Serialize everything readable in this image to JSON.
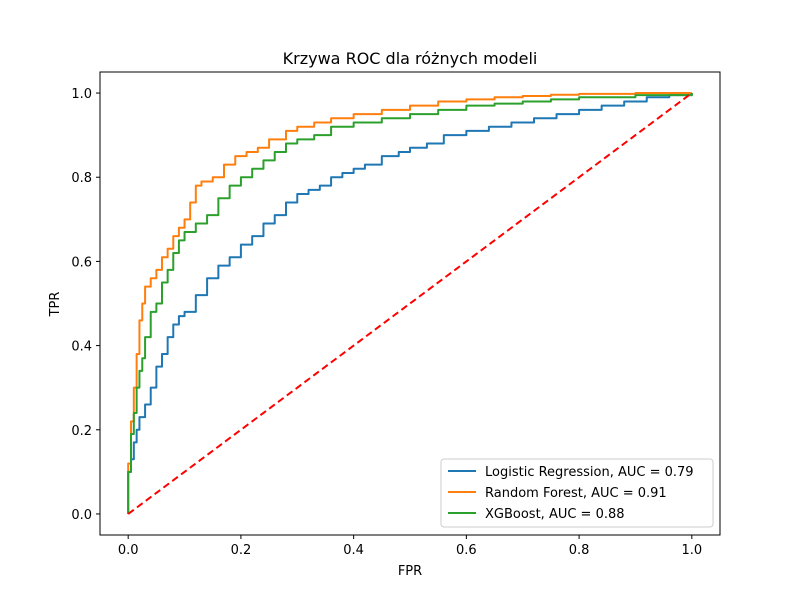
{
  "chart_data": {
    "type": "line",
    "title": "Krzywa ROC dla różnych modeli",
    "xlabel": "FPR",
    "ylabel": "TPR",
    "xlim": [
      -0.05,
      1.05
    ],
    "ylim": [
      -0.05,
      1.05
    ],
    "xticks": [
      "0.0",
      "0.2",
      "0.4",
      "0.6",
      "0.8",
      "1.0"
    ],
    "yticks": [
      "0.0",
      "0.2",
      "0.4",
      "0.6",
      "0.8",
      "1.0"
    ],
    "grid": false,
    "legend_position": "lower-right",
    "series": [
      {
        "name": "Logistic Regression, AUC = 0.79",
        "color": "#1f77b4",
        "style": "step",
        "x": [
          0.0,
          0.0,
          0.005,
          0.01,
          0.015,
          0.02,
          0.03,
          0.04,
          0.05,
          0.06,
          0.07,
          0.08,
          0.09,
          0.1,
          0.12,
          0.14,
          0.16,
          0.18,
          0.2,
          0.22,
          0.24,
          0.26,
          0.28,
          0.3,
          0.32,
          0.34,
          0.36,
          0.38,
          0.4,
          0.42,
          0.45,
          0.48,
          0.5,
          0.53,
          0.56,
          0.6,
          0.64,
          0.68,
          0.72,
          0.76,
          0.8,
          0.84,
          0.88,
          0.92,
          0.96,
          1.0
        ],
        "y": [
          0.0,
          0.1,
          0.13,
          0.17,
          0.2,
          0.23,
          0.26,
          0.3,
          0.35,
          0.38,
          0.42,
          0.45,
          0.47,
          0.48,
          0.52,
          0.56,
          0.59,
          0.61,
          0.64,
          0.66,
          0.69,
          0.71,
          0.74,
          0.76,
          0.77,
          0.78,
          0.8,
          0.81,
          0.82,
          0.83,
          0.85,
          0.86,
          0.87,
          0.88,
          0.9,
          0.91,
          0.92,
          0.93,
          0.94,
          0.95,
          0.96,
          0.97,
          0.98,
          0.99,
          0.995,
          1.0
        ]
      },
      {
        "name": "Random Forest, AUC = 0.91",
        "color": "#ff7f0e",
        "style": "step",
        "x": [
          0.0,
          0.0,
          0.005,
          0.01,
          0.015,
          0.02,
          0.025,
          0.03,
          0.04,
          0.05,
          0.06,
          0.07,
          0.08,
          0.09,
          0.1,
          0.11,
          0.12,
          0.13,
          0.15,
          0.17,
          0.19,
          0.21,
          0.23,
          0.25,
          0.28,
          0.3,
          0.33,
          0.36,
          0.4,
          0.45,
          0.5,
          0.55,
          0.6,
          0.65,
          0.7,
          0.75,
          0.8,
          0.9,
          1.0
        ],
        "y": [
          0.0,
          0.12,
          0.22,
          0.3,
          0.38,
          0.46,
          0.5,
          0.54,
          0.56,
          0.58,
          0.61,
          0.63,
          0.66,
          0.68,
          0.7,
          0.74,
          0.78,
          0.79,
          0.8,
          0.83,
          0.85,
          0.86,
          0.87,
          0.89,
          0.91,
          0.92,
          0.93,
          0.94,
          0.95,
          0.96,
          0.97,
          0.98,
          0.985,
          0.99,
          0.993,
          0.996,
          0.998,
          1.0,
          1.0
        ]
      },
      {
        "name": "XGBoost, AUC = 0.88",
        "color": "#2ca02c",
        "style": "step",
        "x": [
          0.0,
          0.0,
          0.005,
          0.01,
          0.015,
          0.02,
          0.025,
          0.03,
          0.04,
          0.05,
          0.06,
          0.07,
          0.08,
          0.09,
          0.1,
          0.12,
          0.14,
          0.16,
          0.18,
          0.2,
          0.22,
          0.24,
          0.26,
          0.28,
          0.3,
          0.33,
          0.36,
          0.4,
          0.45,
          0.5,
          0.55,
          0.6,
          0.65,
          0.7,
          0.75,
          0.8,
          0.9,
          1.0
        ],
        "y": [
          0.0,
          0.1,
          0.19,
          0.24,
          0.3,
          0.34,
          0.37,
          0.42,
          0.48,
          0.5,
          0.55,
          0.58,
          0.62,
          0.65,
          0.67,
          0.69,
          0.71,
          0.75,
          0.78,
          0.8,
          0.82,
          0.84,
          0.86,
          0.88,
          0.89,
          0.9,
          0.92,
          0.93,
          0.94,
          0.95,
          0.96,
          0.97,
          0.975,
          0.98,
          0.985,
          0.99,
          0.995,
          1.0
        ]
      },
      {
        "name": "",
        "color": "#ff0000",
        "style": "dashed",
        "x": [
          0.0,
          1.0
        ],
        "y": [
          0.0,
          1.0
        ]
      }
    ]
  }
}
